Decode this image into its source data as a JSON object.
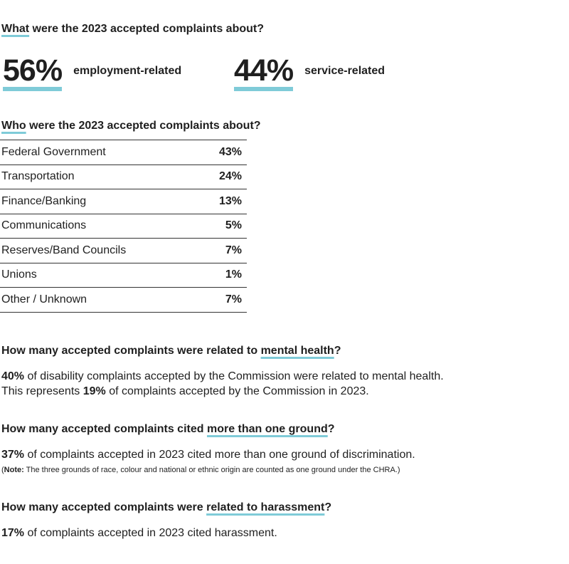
{
  "q1": {
    "lead": "What",
    "rest": " were the 2023 accepted complaints about?"
  },
  "stats": [
    {
      "value": "56%",
      "label": "employment-related"
    },
    {
      "value": "44%",
      "label": "service-related"
    }
  ],
  "q2": {
    "lead": "Who",
    "rest": " were the 2023 accepted complaints about?"
  },
  "who": [
    {
      "label": "Federal Government",
      "pct": "43%"
    },
    {
      "label": "Transportation",
      "pct": "24%"
    },
    {
      "label": "Finance/Banking",
      "pct": "13%"
    },
    {
      "label": "Communications",
      "pct": "5%"
    },
    {
      "label": "Reserves/Band Councils",
      "pct": "7%"
    },
    {
      "label": "Unions",
      "pct": "1%"
    },
    {
      "label": "Other / Unknown",
      "pct": "7%"
    }
  ],
  "mental": {
    "q_pre": "How many accepted complaints were related to ",
    "q_ul": "mental health",
    "q_post": "?",
    "l1_pct": "40%",
    "l1_rest": " of disability complaints accepted by the Commission were related to mental health.",
    "l2_pre": "This represents ",
    "l2_pct": "19%",
    "l2_rest": " of complaints accepted by the Commission in 2023."
  },
  "grounds": {
    "q_pre": "How many accepted complaints cited ",
    "q_ul": "more than one ground",
    "q_post": "?",
    "pct": "37%",
    "rest": " of complaints accepted in 2023 cited more than one ground of discrimination.",
    "note_open": "(",
    "note_label": "Note:",
    "note_text": " The three grounds of race, colour and national or ethnic origin are counted as one ground under the CHRA.)"
  },
  "harass": {
    "q_pre": "How many accepted complaints were ",
    "q_ul": "related to harassment",
    "q_post": "?",
    "pct": "17%",
    "rest": " of complaints accepted in 2023 cited harassment."
  },
  "colors": {
    "accent": "#7fcbd8",
    "text": "#1f1f1f"
  }
}
